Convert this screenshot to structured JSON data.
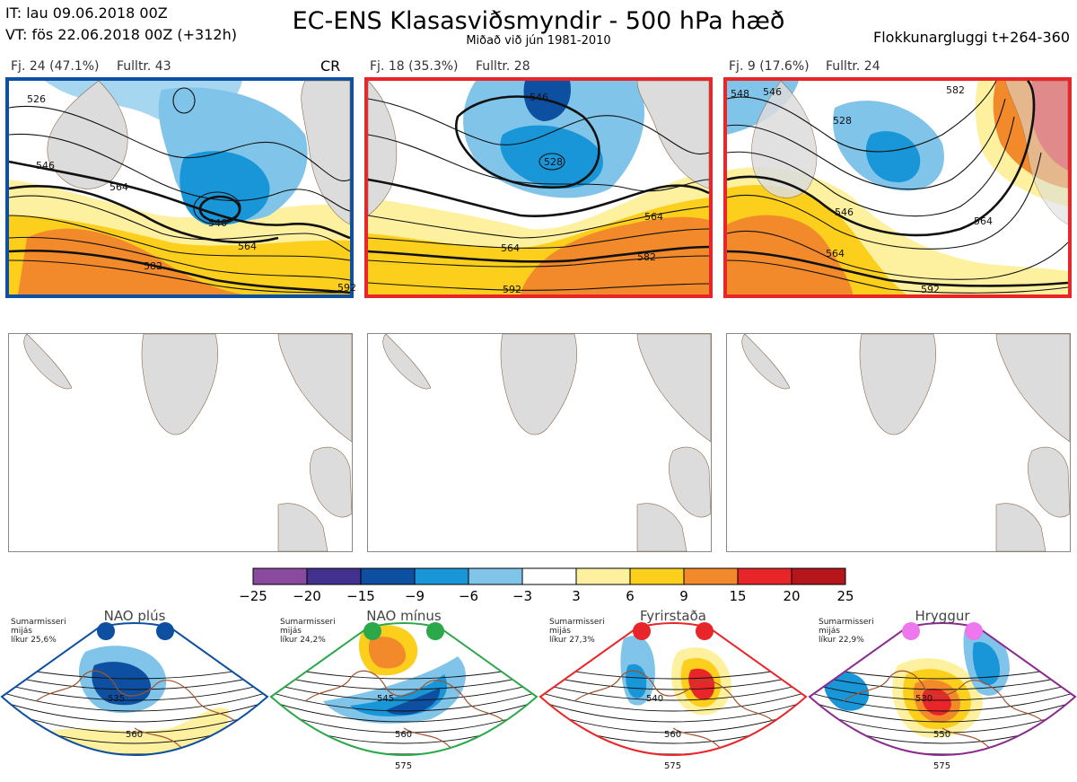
{
  "header": {
    "it_line": "IT: lau 09.06.2018 00Z",
    "vt_line": "VT: fös 22.06.2018 00Z  (+312h)",
    "title": "EC-ENS Klasasviðsmyndir - 500 hPa hæð",
    "subtitle": "Miðað við jún 1981-2010",
    "window": "Flokkunargluggi t+264-360"
  },
  "clusters": [
    {
      "label": "Fj. 24 (47.1%)",
      "members": "Fulltr. 43",
      "tag": "CR",
      "border": "#0d4fa0",
      "contour_labels": [
        "526",
        "546",
        "546",
        "564",
        "564",
        "582",
        "592"
      ]
    },
    {
      "label": "Fj. 18 (35.3%)",
      "members": "Fulltr. 28",
      "tag": "",
      "border": "#e8262a",
      "contour_labels": [
        "546",
        "528",
        "564",
        "564",
        "582",
        "592"
      ]
    },
    {
      "label": "Fj. 9 (17.6%)",
      "members": "Fulltr. 24",
      "tag": "",
      "border": "#e8262a",
      "contour_labels": [
        "548",
        "546",
        "528",
        "546",
        "564",
        "564",
        "582",
        "592"
      ]
    }
  ],
  "colorbar": {
    "ticks": [
      "−25",
      "−20",
      "−15",
      "−9",
      "−6",
      "−3",
      "3",
      "6",
      "9",
      "15",
      "20",
      "25"
    ],
    "colors": [
      "#8a4a9e",
      "#43318f",
      "#0d4fa0",
      "#1996d8",
      "#80c4ea",
      "#ffffff",
      "#fdf1a0",
      "#fbcf1b",
      "#f28a2c",
      "#e8262a",
      "#b5161c"
    ]
  },
  "regimes": [
    {
      "name": "NAO plús",
      "note": [
        "Sumarmisseri",
        "mijás",
        "líkur 25,6%"
      ],
      "color": "#0d4fa0",
      "dot": "#0d4fa0",
      "labels": [
        "535",
        "560"
      ]
    },
    {
      "name": "NAO mínus",
      "note": [
        "Sumarmisseri",
        "mijás",
        "líkur 24,2%"
      ],
      "color": "#2aa84a",
      "dot": "#2aa84a",
      "labels": [
        "545",
        "560",
        "575"
      ]
    },
    {
      "name": "Fyrirstaða",
      "note": [
        "Sumarmisseri",
        "mijás",
        "líkur 27,3%"
      ],
      "color": "#e8262a",
      "dot": "#e8262a",
      "labels": [
        "540",
        "560",
        "575"
      ]
    },
    {
      "name": "Hryggur",
      "note": [
        "Sumarmisseri",
        "mijás",
        "líkur 22,9%"
      ],
      "color": "#8a2a8e",
      "dot": "#ee77ee",
      "labels": [
        "530",
        "550",
        "575"
      ]
    }
  ]
}
